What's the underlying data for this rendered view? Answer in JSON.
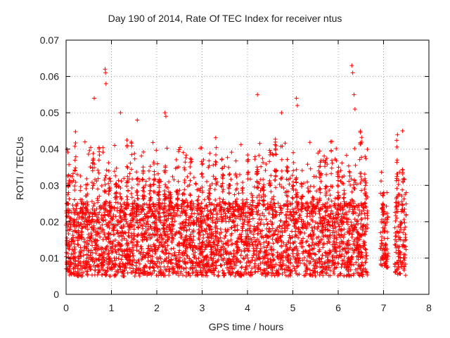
{
  "chart_data": {
    "type": "scatter",
    "title": "Day 190 of 2014, Rate Of TEC Index for receiver ntus",
    "xlabel": "GPS time / hours",
    "ylabel": "ROTI / TECUs",
    "xlim": [
      0,
      8
    ],
    "ylim": [
      0,
      0.07
    ],
    "xticks": [
      "0",
      "1",
      "2",
      "3",
      "4",
      "5",
      "6",
      "7",
      "8"
    ],
    "yticks": [
      "0",
      "0.01",
      "0.02",
      "0.03",
      "0.04",
      "0.05",
      "0.06",
      "0.07"
    ],
    "grid": true,
    "marker": "+",
    "color": "#ff0000",
    "segments": [
      {
        "x_start": 0.0,
        "x_end": 6.65,
        "base_low": 0.003,
        "base_high": 0.03
      },
      {
        "x_start": 6.93,
        "x_end": 7.1,
        "base_low": 0.005,
        "base_high": 0.026
      },
      {
        "x_start": 7.25,
        "x_end": 7.5,
        "base_low": 0.003,
        "base_high": 0.03
      }
    ],
    "notable_points": [
      {
        "x": 0.86,
        "y": 0.062
      },
      {
        "x": 0.87,
        "y": 0.061
      },
      {
        "x": 0.88,
        "y": 0.058
      },
      {
        "x": 0.62,
        "y": 0.054
      },
      {
        "x": 1.2,
        "y": 0.05
      },
      {
        "x": 1.57,
        "y": 0.048
      },
      {
        "x": 2.18,
        "y": 0.05
      },
      {
        "x": 2.2,
        "y": 0.049
      },
      {
        "x": 4.22,
        "y": 0.055
      },
      {
        "x": 4.75,
        "y": 0.05
      },
      {
        "x": 5.08,
        "y": 0.054
      },
      {
        "x": 5.1,
        "y": 0.052
      },
      {
        "x": 6.3,
        "y": 0.063
      },
      {
        "x": 6.32,
        "y": 0.061
      },
      {
        "x": 6.35,
        "y": 0.055
      },
      {
        "x": 6.37,
        "y": 0.051
      },
      {
        "x": 7.42,
        "y": 0.045
      }
    ]
  }
}
